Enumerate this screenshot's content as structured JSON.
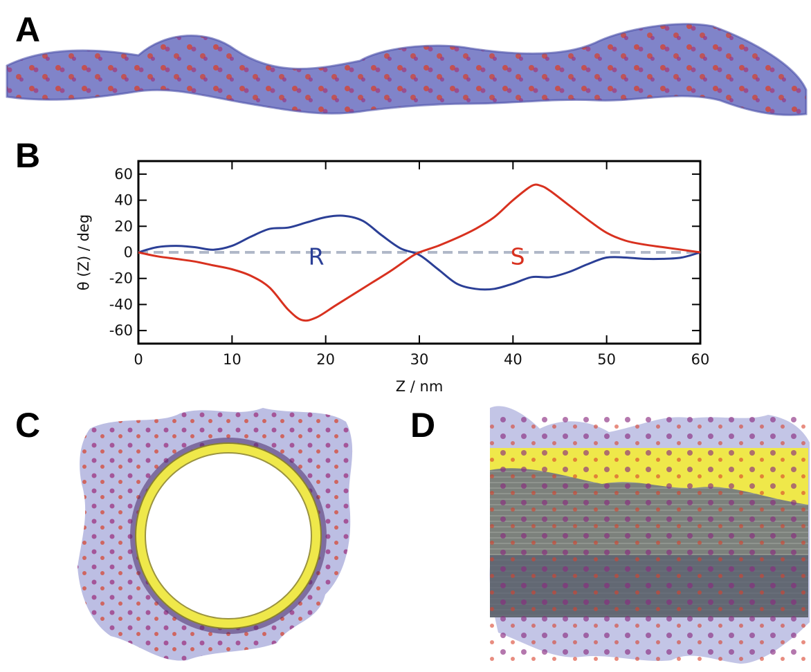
{
  "panels": {
    "a": "A",
    "b": "B",
    "c": "C",
    "d": "D"
  },
  "colors": {
    "R": "#2b3f96",
    "S": "#d8311f",
    "baseline": "#b0b8c8",
    "protein": "#6a6fc0",
    "residue": "#d8402a",
    "tube": "#efe84a"
  },
  "chart_data": {
    "type": "line",
    "xlabel": "Z / nm",
    "ylabel": "θ (Z) / deg",
    "xlim": [
      0,
      60
    ],
    "ylim": [
      -70,
      70
    ],
    "xticks": [
      0,
      10,
      20,
      30,
      40,
      50,
      60
    ],
    "yticks": [
      -60,
      -40,
      -20,
      0,
      20,
      40,
      60
    ],
    "grid": false,
    "annotations": [
      {
        "text": "R",
        "series": "R",
        "x": 19,
        "y": -3
      },
      {
        "text": "S",
        "series": "S",
        "x": 40.5,
        "y": -3
      }
    ],
    "series": [
      {
        "name": "R",
        "x": [
          0,
          2,
          4,
          6,
          8,
          10,
          12,
          14,
          16,
          18,
          20,
          22,
          24,
          26,
          28,
          30,
          32,
          34,
          36,
          38,
          40,
          42,
          44,
          46,
          48,
          50,
          52,
          54,
          56,
          58,
          60
        ],
        "y": [
          0,
          4,
          5,
          4,
          2,
          5,
          12,
          18,
          19,
          23,
          27,
          28,
          24,
          13,
          3,
          -2,
          -13,
          -24,
          -28,
          -28,
          -24,
          -19,
          -19,
          -15,
          -9,
          -4,
          -4,
          -5,
          -5,
          -4,
          0
        ]
      },
      {
        "name": "S",
        "x": [
          0,
          2,
          4,
          6,
          8,
          10,
          12,
          14,
          16,
          17.5,
          19,
          21,
          23,
          25,
          27,
          29,
          30,
          32,
          34,
          36,
          38,
          40,
          42,
          43,
          44,
          46,
          48,
          50,
          52,
          54,
          56,
          58,
          60
        ],
        "y": [
          0,
          -3,
          -5,
          -7,
          -10,
          -13,
          -18,
          -27,
          -44,
          -52,
          -50,
          -41,
          -32,
          -23,
          -14,
          -4,
          0,
          5,
          11,
          18,
          27,
          40,
          51,
          51,
          47,
          36,
          25,
          15,
          9,
          6,
          4,
          2,
          0
        ]
      }
    ]
  }
}
